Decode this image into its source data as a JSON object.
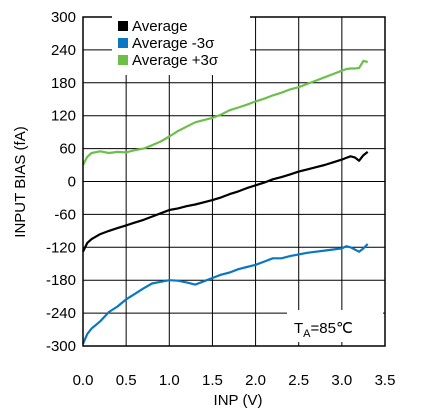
{
  "chart_data": {
    "type": "line",
    "xlabel": "INP (V)",
    "ylabel": "INPUT BIAS (fA)",
    "xlim": [
      0,
      3.5
    ],
    "ylim": [
      -300,
      300
    ],
    "xticks": [
      "0.0",
      "0.5",
      "1.0",
      "1.5",
      "2.0",
      "2.5",
      "3.0",
      "3.5"
    ],
    "yticks": [
      "300",
      "240",
      "180",
      "120",
      "60",
      "0",
      "-60",
      "-120",
      "-180",
      "-240",
      "-300"
    ],
    "grid": true,
    "legend_position": "top-left",
    "annotation": {
      "main": "T",
      "sub": "A",
      "rest": "=85℃"
    },
    "series": [
      {
        "name": "Average",
        "color": "#000000",
        "x": [
          0.0,
          0.05,
          0.1,
          0.2,
          0.3,
          0.4,
          0.5,
          0.6,
          0.7,
          0.8,
          0.9,
          1.0,
          1.1,
          1.2,
          1.3,
          1.4,
          1.5,
          1.6,
          1.7,
          1.8,
          1.9,
          2.0,
          2.1,
          2.2,
          2.3,
          2.4,
          2.5,
          2.6,
          2.7,
          2.8,
          2.9,
          3.0,
          3.05,
          3.1,
          3.15,
          3.2,
          3.25,
          3.3
        ],
        "values": [
          -128,
          -112,
          -105,
          -96,
          -90,
          -85,
          -80,
          -75,
          -70,
          -64,
          -58,
          -52,
          -49,
          -45,
          -42,
          -38,
          -34,
          -29,
          -23,
          -18,
          -12,
          -7,
          -2,
          4,
          8,
          13,
          18,
          22,
          26,
          30,
          35,
          40,
          43,
          46,
          44,
          38,
          48,
          54
        ]
      },
      {
        "name": "Average -3σ",
        "color": "#0a78c0",
        "x": [
          0.0,
          0.05,
          0.1,
          0.2,
          0.3,
          0.4,
          0.5,
          0.6,
          0.7,
          0.8,
          0.9,
          1.0,
          1.1,
          1.2,
          1.3,
          1.4,
          1.5,
          1.6,
          1.7,
          1.8,
          1.9,
          2.0,
          2.1,
          2.2,
          2.3,
          2.4,
          2.5,
          2.6,
          2.7,
          2.8,
          2.9,
          3.0,
          3.05,
          3.1,
          3.15,
          3.2,
          3.25,
          3.3
        ],
        "values": [
          -296,
          -278,
          -268,
          -255,
          -238,
          -228,
          -215,
          -205,
          -195,
          -186,
          -183,
          -180,
          -181,
          -184,
          -188,
          -182,
          -176,
          -170,
          -166,
          -160,
          -156,
          -152,
          -146,
          -140,
          -140,
          -136,
          -133,
          -130,
          -128,
          -126,
          -124,
          -122,
          -118,
          -120,
          -124,
          -128,
          -122,
          -114
        ]
      },
      {
        "name": "Average +3σ",
        "color": "#6cc04a",
        "x": [
          0.0,
          0.05,
          0.1,
          0.2,
          0.3,
          0.4,
          0.5,
          0.6,
          0.7,
          0.8,
          0.9,
          1.0,
          1.1,
          1.2,
          1.3,
          1.4,
          1.5,
          1.6,
          1.7,
          1.8,
          1.9,
          2.0,
          2.1,
          2.2,
          2.3,
          2.4,
          2.5,
          2.6,
          2.7,
          2.8,
          2.9,
          3.0,
          3.05,
          3.1,
          3.15,
          3.2,
          3.25,
          3.3
        ],
        "values": [
          30,
          45,
          52,
          55,
          52,
          54,
          53,
          57,
          60,
          66,
          73,
          82,
          92,
          100,
          108,
          112,
          116,
          122,
          130,
          135,
          140,
          146,
          151,
          157,
          162,
          168,
          172,
          178,
          184,
          190,
          196,
          202,
          205,
          206,
          206,
          207,
          220,
          218
        ]
      }
    ]
  }
}
